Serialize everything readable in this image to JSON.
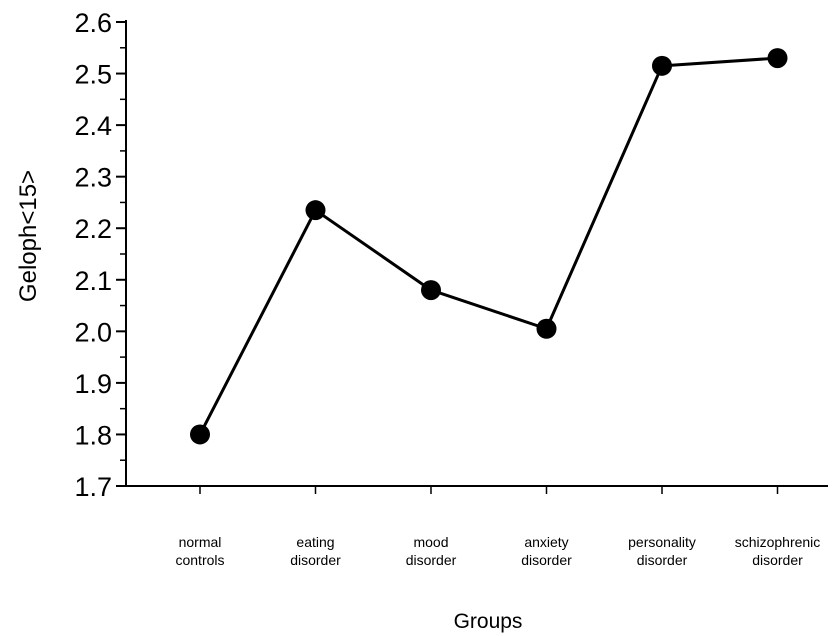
{
  "chart_data": {
    "type": "line",
    "ylabel": "Geloph<15>",
    "xlabel": "Groups",
    "ylim": [
      1.7,
      2.6
    ],
    "yticks": [
      "1.7",
      "1.8",
      "1.9",
      "2.0",
      "2.1",
      "2.2",
      "2.3",
      "2.4",
      "2.5",
      "2.6"
    ],
    "categories": [
      [
        "normal",
        "controls"
      ],
      [
        "eating",
        "disorder"
      ],
      [
        "mood",
        "disorder"
      ],
      [
        "anxiety",
        "disorder"
      ],
      [
        "personality",
        "disorder"
      ],
      [
        "schizophrenic",
        "disorder"
      ]
    ],
    "values": [
      1.8,
      2.235,
      2.08,
      2.005,
      2.515,
      2.53
    ],
    "grid": false,
    "legend": "none",
    "line_color": "#000000",
    "marker": "filled-circle"
  }
}
